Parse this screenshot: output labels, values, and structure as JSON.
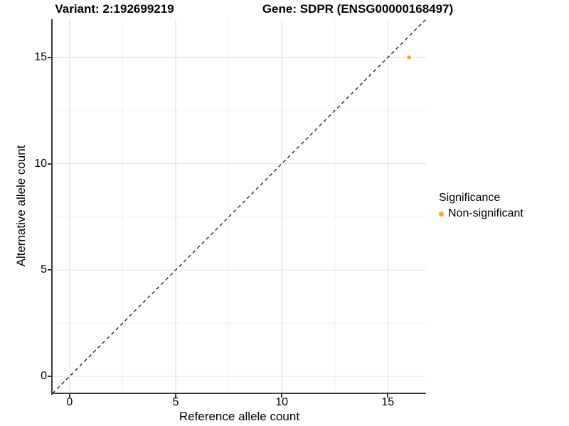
{
  "header": {
    "variant_title": "Variant: 2:192699219",
    "gene_title": "Gene: SDPR (ENSG00000168497)"
  },
  "chart_data": {
    "type": "scatter",
    "title_left": "Variant: 2:192699219",
    "title_right": "Gene: SDPR (ENSG00000168497)",
    "xlabel": "Reference allele count",
    "ylabel": "Alternative allele count",
    "xlim": [
      -0.8,
      16.8
    ],
    "ylim": [
      -0.8,
      16.8
    ],
    "xticks": [
      0,
      5,
      10,
      15
    ],
    "yticks": [
      0,
      5,
      10,
      15
    ],
    "xminor": [
      2.5,
      7.5,
      12.5
    ],
    "yminor": [
      2.5,
      7.5,
      12.5
    ],
    "grid": "major and minor gridlines on white background",
    "identity_line": {
      "slope": 1,
      "intercept": 0,
      "style": "dashed",
      "color": "#1a1a1a"
    },
    "series": [
      {
        "name": "Non-significant",
        "color": "#FCA32B",
        "points": [
          {
            "x": 16,
            "y": 15
          }
        ]
      }
    ],
    "legend_position": "right"
  },
  "legend": {
    "title": "Significance",
    "items": [
      {
        "label": "Non-significant",
        "color": "#FCA32B",
        "marker": "circle-icon"
      }
    ]
  },
  "colors": {
    "background": "#FFFFFF",
    "axis_line": "#3C3C3C",
    "grid_major": "#E3E3E3",
    "grid_minor": "#F1F1F1",
    "text": "#000000"
  }
}
